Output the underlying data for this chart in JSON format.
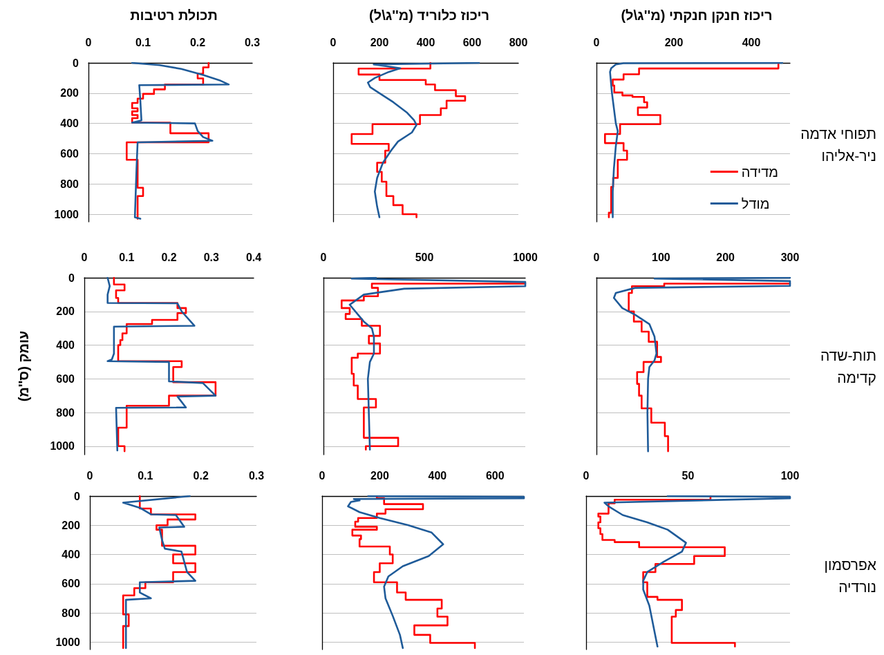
{
  "chart_data": [
    {
      "type": "line",
      "title": "תכולת רטיבות",
      "xlim": [
        0,
        0.3
      ],
      "xticks": [
        0,
        0.1,
        0.2,
        0.3
      ],
      "ylim": [
        1050,
        0
      ],
      "yticks": [
        0,
        200,
        400,
        600,
        800,
        1000
      ],
      "grid": "y",
      "series": [
        {
          "color": "#ff0000",
          "x": [
            0.22,
            0.22,
            0.21,
            0.21,
            0.2,
            0.2,
            0.21,
            0.21,
            0.14,
            0.14,
            0.12,
            0.12,
            0.1,
            0.1,
            0.09,
            0.09,
            0.08,
            0.08,
            0.09,
            0.09,
            0.08,
            0.08,
            0.09,
            0.09,
            0.08,
            0.08,
            0.15,
            0.15,
            0.22,
            0.22,
            0.07,
            0.07,
            0.09,
            0.09,
            0.1,
            0.1,
            0.09,
            0.09
          ],
          "values": [
            0,
            30,
            30,
            72,
            72,
            103,
            103,
            143,
            143,
            175,
            175,
            205,
            205,
            236,
            236,
            265,
            265,
            300,
            300,
            320,
            320,
            345,
            345,
            365,
            365,
            395,
            395,
            465,
            465,
            525,
            525,
            640,
            640,
            825,
            825,
            880,
            880,
            1030
          ]
        },
        {
          "color": "#1f5b99",
          "x": [
            0.08,
            0.13,
            0.17,
            0.21,
            0.24,
            0.257,
            0.093,
            0.095,
            0.097,
            0.08,
            0.195,
            0.2,
            0.21,
            0.227,
            0.09,
            0.088,
            0.085,
            0.095
          ],
          "values": [
            0,
            15,
            40,
            80,
            115,
            143,
            147,
            250,
            380,
            395,
            400,
            450,
            490,
            515,
            525,
            700,
            1020,
            1030
          ]
        }
      ]
    },
    {
      "type": "line",
      "title": "ריכוז כלוריד (מ''ג\\ל)",
      "xlim": [
        0,
        800
      ],
      "xticks": [
        0,
        200,
        400,
        600,
        800
      ],
      "ylim": [
        1050,
        0
      ],
      "yticks": [
        0,
        200,
        400,
        600,
        800,
        1000
      ],
      "grid": "y",
      "tick_labels": "x",
      "series": [
        {
          "color": "#ff0000",
          "x": [
            420,
            420,
            110,
            110,
            200,
            200,
            400,
            400,
            440,
            440,
            530,
            530,
            570,
            570,
            490,
            490,
            465,
            465,
            375,
            375,
            170,
            170,
            80,
            80,
            240,
            240,
            225,
            225,
            190,
            190,
            210,
            210,
            230,
            230,
            260,
            260,
            300,
            300,
            360,
            360
          ],
          "values": [
            0,
            38,
            38,
            77,
            77,
            113,
            113,
            143,
            143,
            180,
            180,
            220,
            220,
            250,
            250,
            300,
            300,
            345,
            345,
            405,
            405,
            470,
            470,
            535,
            535,
            580,
            580,
            660,
            660,
            720,
            720,
            785,
            785,
            880,
            880,
            940,
            940,
            1000,
            1000,
            1020
          ]
        },
        {
          "color": "#1f5b99",
          "x": [
            630,
            175,
            290,
            240,
            180,
            150,
            160,
            200,
            260,
            320,
            350,
            360,
            340,
            280,
            250,
            215,
            190,
            180,
            190,
            200
          ],
          "values": [
            0,
            10,
            35,
            60,
            100,
            130,
            160,
            200,
            260,
            330,
            380,
            410,
            460,
            520,
            580,
            660,
            760,
            850,
            950,
            1020
          ]
        }
      ]
    },
    {
      "type": "line",
      "title": "ריכוז חנקן חנקתי (מ''ג\\ל)",
      "xlim": [
        0,
        500
      ],
      "xticks": [
        0,
        200,
        400
      ],
      "ylim": [
        1050,
        0
      ],
      "yticks": [
        0,
        200,
        400,
        600,
        800,
        1000
      ],
      "grid": "y",
      "tick_labels": "x",
      "legend": "right",
      "annotations": [
        "תפוחי אדמה ניר-אליהו"
      ],
      "series": [
        {
          "name": "מדידה",
          "color": "#ff0000",
          "x": [
            470,
            470,
            110,
            110,
            70,
            70,
            42,
            42,
            46,
            46,
            67,
            67,
            93,
            93,
            123,
            123,
            131,
            131,
            107,
            107,
            165,
            165,
            61,
            61,
            22,
            22,
            70,
            70,
            79,
            79,
            55,
            55,
            43,
            43,
            38,
            38,
            32,
            32
          ],
          "values": [
            10,
            37,
            37,
            75,
            75,
            110,
            110,
            150,
            150,
            195,
            195,
            215,
            215,
            225,
            225,
            260,
            260,
            295,
            295,
            345,
            345,
            405,
            405,
            470,
            470,
            530,
            530,
            580,
            580,
            640,
            640,
            760,
            760,
            820,
            820,
            990,
            990,
            1020
          ]
        },
        {
          "name": "מודל",
          "color": "#1f5b99",
          "x": [
            480,
            70,
            50,
            38,
            35,
            40,
            50,
            55,
            50,
            45,
            42,
            42
          ],
          "values": [
            0,
            2,
            10,
            35,
            60,
            200,
            400,
            450,
            550,
            700,
            850,
            1020
          ]
        }
      ]
    },
    {
      "type": "line",
      "ylabel": "עומק (ס''מ)",
      "xlim": [
        0,
        0.4
      ],
      "xticks": [
        0,
        0.1,
        0.2,
        0.3,
        0.4
      ],
      "ylim": [
        1050,
        0
      ],
      "yticks": [
        0,
        200,
        400,
        600,
        800,
        1000
      ],
      "grid": "y",
      "series": [
        {
          "color": "#ff0000",
          "x": [
            0.07,
            0.07,
            0.095,
            0.095,
            0.075,
            0.075,
            0.08,
            0.08,
            0.22,
            0.22,
            0.24,
            0.24,
            0.22,
            0.22,
            0.16,
            0.16,
            0.1,
            0.1,
            0.09,
            0.09,
            0.085,
            0.085,
            0.08,
            0.08,
            0.23,
            0.23,
            0.21,
            0.21,
            0.31,
            0.31,
            0.2,
            0.2,
            0.1,
            0.1,
            0.08,
            0.08,
            0.095,
            0.095
          ],
          "values": [
            0,
            40,
            40,
            75,
            75,
            120,
            120,
            150,
            150,
            180,
            180,
            210,
            210,
            250,
            250,
            275,
            275,
            330,
            330,
            370,
            370,
            400,
            400,
            495,
            495,
            530,
            530,
            620,
            620,
            700,
            700,
            760,
            760,
            890,
            890,
            1000,
            1000,
            1030
          ]
        },
        {
          "color": "#1f5b99",
          "x": [
            0.055,
            0.06,
            0.055,
            0.055,
            0.22,
            0.23,
            0.26,
            0.07,
            0.07,
            0.065,
            0.055,
            0.2,
            0.2,
            0.2,
            0.28,
            0.31,
            0.22,
            0.24,
            0.075,
            0.078
          ],
          "values": [
            0,
            50,
            100,
            150,
            152,
            200,
            285,
            290,
            450,
            485,
            495,
            500,
            600,
            615,
            625,
            700,
            705,
            770,
            772,
            1025
          ]
        }
      ]
    },
    {
      "type": "line",
      "xlim": [
        0,
        1000
      ],
      "xticks": [
        0,
        500,
        1000
      ],
      "ylim": [
        1050,
        0
      ],
      "yticks": [
        0,
        200,
        400,
        600,
        800,
        1000
      ],
      "grid": "y",
      "tick_labels": "x",
      "series": [
        {
          "color": "#ff0000",
          "x": [
            1000,
            240,
            240,
            270,
            270,
            200,
            200,
            90,
            90,
            130,
            130,
            110,
            110,
            190,
            190,
            280,
            280,
            225,
            225,
            280,
            280,
            170,
            170,
            140,
            140,
            150,
            150,
            170,
            170,
            260,
            260,
            200,
            200,
            370,
            370,
            210,
            210
          ],
          "values": [
            35,
            35,
            60,
            60,
            110,
            110,
            135,
            135,
            180,
            180,
            215,
            215,
            245,
            245,
            285,
            285,
            345,
            345,
            390,
            390,
            450,
            450,
            475,
            475,
            570,
            570,
            640,
            640,
            720,
            720,
            770,
            770,
            950,
            950,
            1000,
            1000,
            1020
          ]
        },
        {
          "color": "#1f5b99",
          "x": [
            260,
            140,
            1000,
            1000,
            400,
            200,
            130,
            200,
            240,
            250,
            250,
            230,
            220,
            230
          ],
          "values": [
            0,
            5,
            25,
            50,
            65,
            100,
            160,
            260,
            300,
            350,
            450,
            500,
            600,
            1020
          ]
        }
      ]
    },
    {
      "type": "line",
      "xlim": [
        0,
        300
      ],
      "xticks": [
        0,
        100,
        200,
        300
      ],
      "ylim": [
        1050,
        0
      ],
      "yticks": [
        0,
        200,
        400,
        600,
        800,
        1000
      ],
      "grid": "y",
      "tick_labels": "x",
      "annotations": [
        "תות-שדה קדימה"
      ],
      "series": [
        {
          "color": "#ff0000",
          "x": [
            300,
            105,
            105,
            55,
            55,
            50,
            50,
            58,
            58,
            70,
            70,
            81,
            81,
            94,
            94,
            100,
            100,
            73,
            73,
            63,
            63,
            66,
            66,
            70,
            70,
            85,
            85,
            106,
            106,
            111,
            111
          ],
          "values": [
            35,
            35,
            50,
            50,
            90,
            90,
            200,
            200,
            260,
            260,
            320,
            320,
            380,
            380,
            470,
            470,
            500,
            500,
            560,
            560,
            630,
            630,
            700,
            700,
            775,
            775,
            860,
            860,
            940,
            940,
            1030
          ]
        },
        {
          "color": "#1f5b99",
          "x": [
            300,
            90,
            300,
            300,
            60,
            30,
            27,
            40,
            60,
            82,
            90,
            93,
            90,
            82,
            80,
            79,
            80
          ],
          "values": [
            0,
            5,
            20,
            48,
            60,
            90,
            120,
            180,
            220,
            275,
            350,
            450,
            490,
            530,
            600,
            800,
            1030
          ]
        }
      ]
    },
    {
      "type": "line",
      "xlim": [
        0,
        0.3
      ],
      "xticks": [
        0,
        0.1,
        0.2,
        0.3
      ],
      "ylim": [
        1050,
        0
      ],
      "yticks": [
        0,
        200,
        400,
        600,
        800,
        1000
      ],
      "grid": "y",
      "series": [
        {
          "color": "#ff0000",
          "x": [
            0.09,
            0.09,
            0.11,
            0.11,
            0.19,
            0.19,
            0.14,
            0.14,
            0.12,
            0.12,
            0.13,
            0.13,
            0.19,
            0.19,
            0.15,
            0.15,
            0.19,
            0.19,
            0.15,
            0.15,
            0.1,
            0.1,
            0.08,
            0.08,
            0.06,
            0.06,
            0.07,
            0.07,
            0.06,
            0.06
          ],
          "values": [
            0,
            85,
            85,
            125,
            125,
            160,
            160,
            200,
            200,
            230,
            230,
            340,
            340,
            400,
            400,
            460,
            460,
            520,
            520,
            590,
            590,
            630,
            630,
            680,
            680,
            810,
            810,
            890,
            890,
            1040
          ]
        },
        {
          "color": "#1f5b99",
          "x": [
            0.18,
            0.06,
            0.09,
            0.11,
            0.155,
            0.17,
            0.125,
            0.13,
            0.135,
            0.165,
            0.175,
            0.19,
            0.09,
            0.09,
            0.11,
            0.065,
            0.065
          ],
          "values": [
            0,
            45,
            80,
            125,
            130,
            210,
            215,
            300,
            360,
            380,
            520,
            580,
            590,
            660,
            700,
            710,
            1040
          ]
        }
      ]
    },
    {
      "type": "line",
      "xlim": [
        0,
        700
      ],
      "xticks": [
        0,
        200,
        400,
        600
      ],
      "ylim": [
        1050,
        0
      ],
      "yticks": [
        0,
        200,
        400,
        600,
        800,
        1000
      ],
      "grid": "y",
      "tick_labels": "x",
      "series": [
        {
          "color": "#ff0000",
          "x": [
            190,
            190,
            215,
            215,
            350,
            350,
            220,
            220,
            190,
            190,
            125,
            125,
            115,
            115,
            190,
            190,
            105,
            105,
            135,
            135,
            130,
            130,
            235,
            235,
            245,
            245,
            200,
            200,
            180,
            180,
            260,
            260,
            290,
            290,
            415,
            415,
            400,
            400,
            435,
            435,
            320,
            320,
            375,
            375,
            530,
            530
          ],
          "values": [
            0,
            15,
            15,
            55,
            55,
            90,
            90,
            120,
            120,
            150,
            150,
            175,
            175,
            210,
            210,
            230,
            230,
            270,
            270,
            295,
            295,
            345,
            345,
            400,
            400,
            460,
            460,
            520,
            520,
            590,
            590,
            660,
            660,
            710,
            710,
            770,
            770,
            825,
            825,
            885,
            885,
            950,
            950,
            1005,
            1005,
            1040
          ]
        },
        {
          "color": "#1f5b99",
          "x": [
            160,
            700,
            700,
            110,
            130,
            100,
            90,
            130,
            200,
            300,
            380,
            420,
            370,
            280,
            230,
            215,
            220,
            245,
            270,
            280
          ],
          "values": [
            0,
            5,
            15,
            20,
            30,
            40,
            70,
            110,
            150,
            200,
            250,
            330,
            410,
            480,
            550,
            620,
            700,
            820,
            950,
            1040
          ]
        }
      ]
    },
    {
      "type": "line",
      "xlim": [
        0,
        100
      ],
      "xticks": [
        0,
        50,
        100
      ],
      "ylim": [
        1050,
        0
      ],
      "yticks": [
        0,
        200,
        400,
        600,
        800,
        1000
      ],
      "grid": "y",
      "tick_labels": "x",
      "annotations": [
        "אפרסמון נורדיה"
      ],
      "series": [
        {
          "color": "#ff0000",
          "x": [
            61,
            61,
            14,
            14,
            11,
            11,
            6,
            6,
            7,
            7,
            6,
            6,
            7,
            7,
            8,
            8,
            14,
            14,
            26,
            26,
            68,
            68,
            53,
            53,
            34,
            34,
            28,
            28,
            30,
            30,
            35,
            35,
            47,
            47,
            44,
            44,
            42,
            42,
            73,
            73
          ],
          "values": [
            0,
            25,
            25,
            50,
            50,
            120,
            120,
            140,
            140,
            180,
            180,
            220,
            220,
            260,
            260,
            300,
            300,
            315,
            315,
            350,
            350,
            410,
            410,
            465,
            465,
            520,
            520,
            590,
            590,
            690,
            690,
            710,
            710,
            780,
            780,
            825,
            825,
            1005,
            1005,
            1030
          ]
        },
        {
          "color": "#1f5b99",
          "x": [
            40,
            100,
            100,
            9,
            11,
            18,
            30,
            40,
            49,
            47,
            38,
            30,
            28,
            28,
            31,
            35
          ],
          "values": [
            0,
            5,
            15,
            45,
            70,
            130,
            180,
            230,
            320,
            380,
            450,
            520,
            580,
            640,
            750,
            1030
          ]
        }
      ]
    }
  ]
}
